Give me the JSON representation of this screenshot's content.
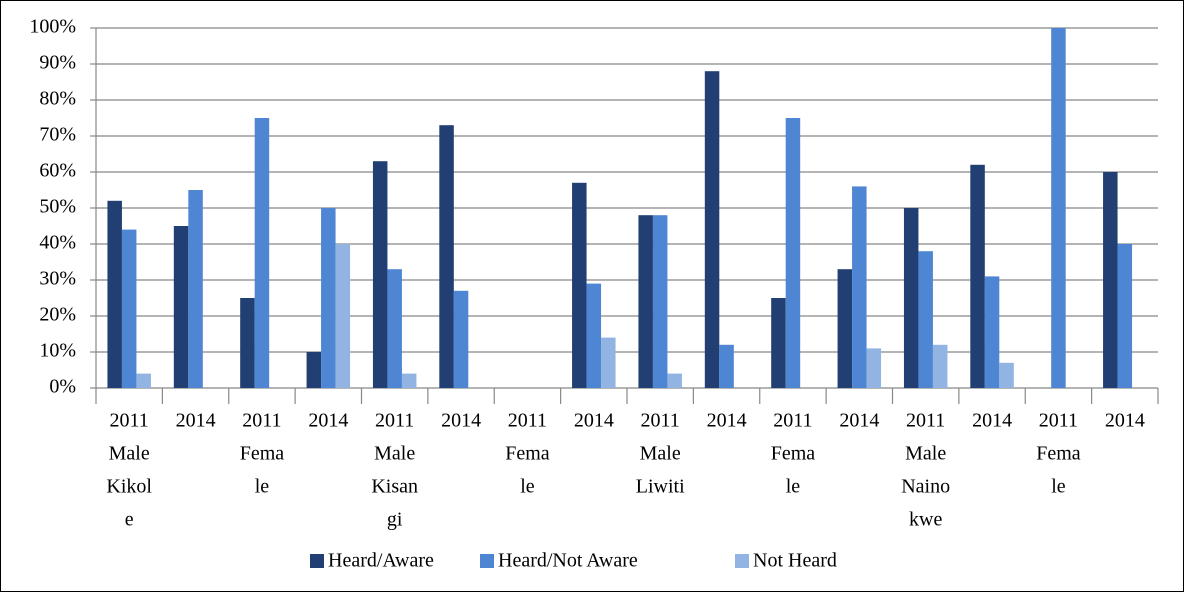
{
  "chart_data": {
    "type": "bar",
    "categories": [
      [
        "2011",
        "Male",
        "Kikol",
        "e"
      ],
      [
        "2014"
      ],
      [
        "2011",
        "Fema",
        "le"
      ],
      [
        "2014"
      ],
      [
        "2011",
        "Male",
        "Kisan",
        "gi"
      ],
      [
        "2014"
      ],
      [
        "2011",
        "Fema",
        "le"
      ],
      [
        "2014"
      ],
      [
        "2011",
        "Male",
        "Liwiti"
      ],
      [
        "2014"
      ],
      [
        "2011",
        "Fema",
        "le"
      ],
      [
        "2014"
      ],
      [
        "2011",
        "Male",
        "Naino",
        "kwe"
      ],
      [
        "2014"
      ],
      [
        "2011",
        "Fema",
        "le"
      ],
      [
        "2014"
      ]
    ],
    "series": [
      {
        "name": "Heard/Aware",
        "color": "#213f72",
        "values": [
          52,
          45,
          25,
          10,
          63,
          73,
          0,
          57,
          48,
          88,
          25,
          33,
          50,
          62,
          0,
          60
        ]
      },
      {
        "name": "Heard/Not Aware",
        "color": "#4f86d3",
        "values": [
          44,
          55,
          75,
          50,
          33,
          27,
          0,
          29,
          48,
          12,
          75,
          56,
          38,
          31,
          100,
          40
        ]
      },
      {
        "name": "Not Heard",
        "color": "#91b4e3",
        "values": [
          4,
          0,
          0,
          40,
          4,
          0,
          0,
          14,
          4,
          0,
          0,
          11,
          12,
          7,
          0,
          0
        ]
      }
    ],
    "ylim": [
      0,
      100
    ],
    "yticks": [
      {
        "value": 0,
        "label": "0%"
      },
      {
        "value": 10,
        "label": "10%"
      },
      {
        "value": 20,
        "label": "20%"
      },
      {
        "value": 30,
        "label": "30%"
      },
      {
        "value": 40,
        "label": "40%"
      },
      {
        "value": 50,
        "label": "50%"
      },
      {
        "value": 60,
        "label": "60%"
      },
      {
        "value": 70,
        "label": "70%"
      },
      {
        "value": 80,
        "label": "80%"
      },
      {
        "value": 90,
        "label": "90%"
      },
      {
        "value": 100,
        "label": "100%"
      }
    ],
    "grid": true,
    "legend": "bottom"
  }
}
